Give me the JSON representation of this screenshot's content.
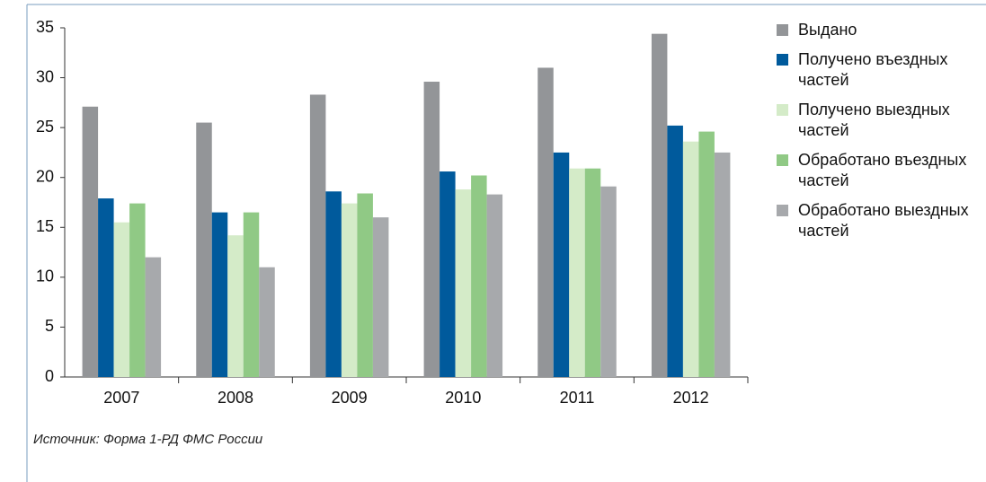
{
  "chart_data": {
    "type": "bar",
    "categories": [
      "2007",
      "2008",
      "2009",
      "2010",
      "2011",
      "2012"
    ],
    "series": [
      {
        "name": "Выдано",
        "color": "#939598",
        "values": [
          27.1,
          25.5,
          28.3,
          29.6,
          31,
          34.4
        ]
      },
      {
        "name": "Получено въездных частей",
        "color": "#005a9c",
        "values": [
          17.9,
          16.5,
          18.6,
          20.6,
          22.5,
          25.2
        ]
      },
      {
        "name": "Получено выездных частей",
        "color": "#d4ebc8",
        "values": [
          15.5,
          14.2,
          17.4,
          18.8,
          20.9,
          23.6
        ]
      },
      {
        "name": "Обработано въездных частей",
        "color": "#90c985",
        "values": [
          17.4,
          16.5,
          18.4,
          20.2,
          20.9,
          24.6
        ]
      },
      {
        "name": "Обработано выездных частей",
        "color": "#a7a9ac",
        "values": [
          12,
          11,
          16,
          18.3,
          19.1,
          22.5
        ]
      }
    ],
    "ylim": [
      0,
      35
    ],
    "yticks": [
      0,
      5,
      10,
      15,
      20,
      25,
      30,
      35
    ],
    "legend": "right",
    "source": "Источник: Форма 1-РД ФМС России"
  }
}
